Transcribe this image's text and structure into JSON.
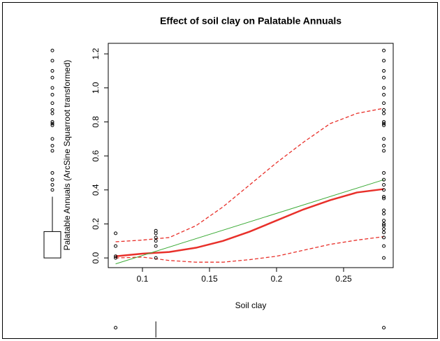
{
  "chart_data": {
    "type": "scatter",
    "title": "Effect of soil clay on Palatable Annuals",
    "x_label": "Soil clay",
    "y_label": "Palatable Annuals (ArcSine Squarroot transformed)",
    "xlim": [
      0.0745,
      0.287
    ],
    "ylim": [
      -0.057,
      1.262
    ],
    "xticks": [
      0.1,
      0.15,
      0.2,
      0.25
    ],
    "yticks": [
      {
        "value": 0,
        "label": "0.0"
      },
      0.2,
      0.4,
      0.6,
      0.8,
      {
        "value": 1,
        "label": "1.0"
      },
      1.2
    ],
    "points": {
      "color": "#000000",
      "x": [
        0.08,
        0.08,
        0.08,
        0.08,
        0.11,
        0.11,
        0.11,
        0.11,
        0.11,
        0.11,
        0.28,
        0.28,
        0.28,
        0.28,
        0.28,
        0.28,
        0.28,
        0.28,
        0.28,
        0.28,
        0.28,
        0.28,
        0.28,
        0.28,
        0.28,
        0.28,
        0.28,
        0.28,
        0.28,
        0.28,
        0.28,
        0.28,
        0.28,
        0.28,
        0.28,
        0.28,
        0.28,
        0.28,
        0.28,
        0.28,
        0.28
      ],
      "y": [
        0.145,
        0.07,
        0.01,
        0.0,
        0.16,
        0.145,
        0.12,
        0.1,
        0.07,
        0.0,
        1.22,
        1.16,
        1.1,
        1.06,
        1.0,
        0.96,
        0.91,
        0.87,
        0.85,
        0.8,
        0.79,
        0.78,
        0.7,
        0.66,
        0.63,
        0.5,
        0.46,
        0.43,
        0.4,
        0.36,
        0.35,
        0.28,
        0.26,
        0.22,
        0.2,
        0.19,
        0.17,
        0.15,
        0.12,
        0.07,
        0.0
      ]
    },
    "y_boxplot": {
      "whisker_high": 0.36,
      "q3": 0.155,
      "q1": 0.0
    },
    "x_boxplot": {
      "median": 0.11
    },
    "curves": [
      {
        "style": "thick",
        "color": "#e8302a",
        "x": [
          0.08,
          0.1,
          0.12,
          0.14,
          0.16,
          0.18,
          0.2,
          0.22,
          0.24,
          0.26,
          0.28
        ],
        "values": [
          0.01,
          0.025,
          0.035,
          0.06,
          0.1,
          0.155,
          0.22,
          0.285,
          0.34,
          0.385,
          0.405
        ]
      },
      {
        "style": "dashed",
        "color": "#e8302a",
        "x": [
          0.08,
          0.1,
          0.12,
          0.14,
          0.16,
          0.18,
          0.2,
          0.22,
          0.24,
          0.26,
          0.28
        ],
        "values": [
          0.095,
          0.105,
          0.12,
          0.19,
          0.3,
          0.43,
          0.56,
          0.68,
          0.79,
          0.85,
          0.88
        ]
      },
      {
        "style": "dashed",
        "color": "#e8302a",
        "x": [
          0.08,
          0.1,
          0.12,
          0.14,
          0.16,
          0.18,
          0.2,
          0.22,
          0.24,
          0.26,
          0.28
        ],
        "values": [
          0.0,
          0.005,
          -0.015,
          -0.025,
          -0.025,
          -0.01,
          0.01,
          0.045,
          0.08,
          0.105,
          0.125
        ]
      },
      {
        "style": "thin",
        "color": "#3aaa35",
        "x": [
          0.08,
          0.28
        ],
        "values": [
          -0.035,
          0.46
        ]
      }
    ]
  }
}
